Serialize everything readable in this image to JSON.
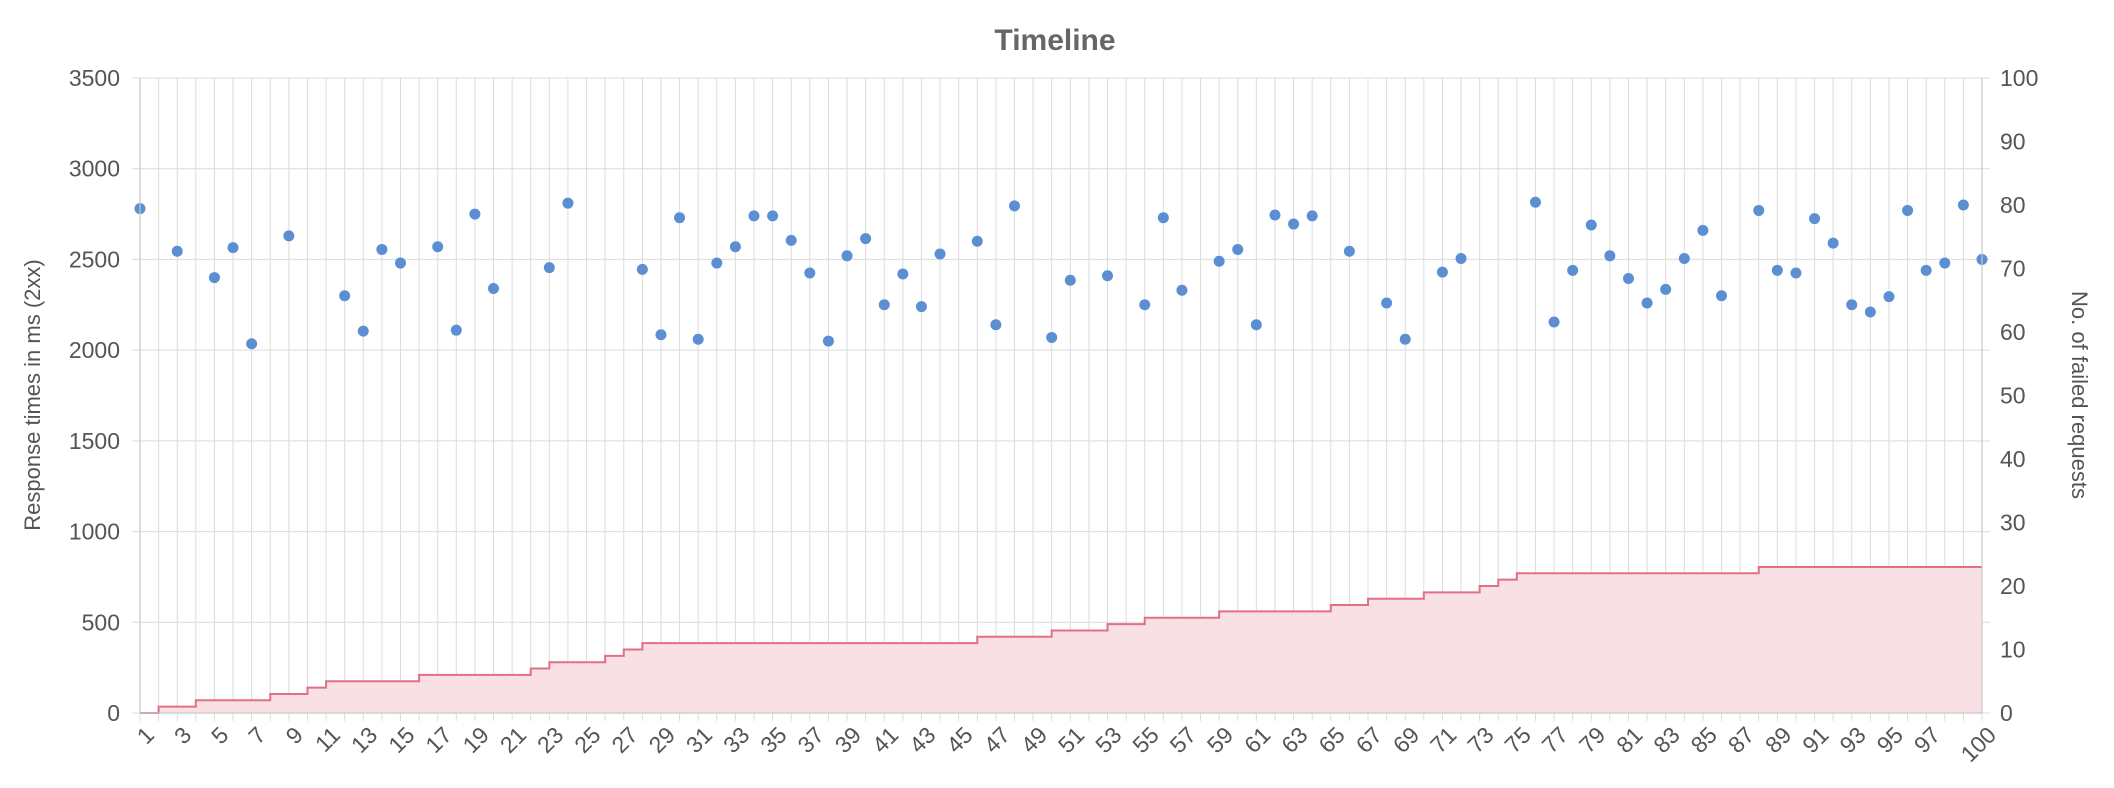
{
  "chart_data": {
    "type": "scatter",
    "title": "Timeline",
    "x": [
      1,
      2,
      3,
      4,
      5,
      6,
      7,
      8,
      9,
      10,
      11,
      12,
      13,
      14,
      15,
      16,
      17,
      18,
      19,
      20,
      21,
      22,
      23,
      24,
      25,
      26,
      27,
      28,
      29,
      30,
      31,
      32,
      33,
      34,
      35,
      36,
      37,
      38,
      39,
      40,
      41,
      42,
      43,
      44,
      45,
      46,
      47,
      48,
      49,
      50,
      51,
      52,
      53,
      54,
      55,
      56,
      57,
      58,
      59,
      60,
      61,
      62,
      63,
      64,
      65,
      66,
      67,
      68,
      69,
      70,
      71,
      72,
      73,
      74,
      75,
      76,
      77,
      78,
      79,
      80,
      81,
      82,
      83,
      84,
      85,
      86,
      87,
      88,
      89,
      90,
      91,
      92,
      93,
      94,
      95,
      96,
      97,
      98,
      99,
      100
    ],
    "x_tick_labels": [
      "1",
      "3",
      "5",
      "7",
      "9",
      "11",
      "13",
      "15",
      "17",
      "19",
      "21",
      "23",
      "25",
      "27",
      "29",
      "31",
      "33",
      "35",
      "37",
      "39",
      "41",
      "43",
      "45",
      "47",
      "49",
      "51",
      "53",
      "55",
      "57",
      "59",
      "61",
      "63",
      "65",
      "67",
      "69",
      "71",
      "73",
      "75",
      "77",
      "79",
      "81",
      "83",
      "85",
      "87",
      "89",
      "91",
      "93",
      "95",
      "97",
      "100"
    ],
    "y_left": {
      "label": "Response times in ms (2xx)",
      "range": [
        0,
        3500
      ],
      "ticks": [
        0,
        500,
        1000,
        1500,
        2000,
        2500,
        3000,
        3500
      ]
    },
    "y_right": {
      "label": "No. of failed requests",
      "range": [
        0,
        100
      ],
      "ticks": [
        0,
        10,
        20,
        30,
        40,
        50,
        60,
        70,
        80,
        90,
        100
      ]
    },
    "series": [
      {
        "type": "scatter",
        "axis": "left",
        "color": "#5b8fd2",
        "points": [
          [
            1,
            2780
          ],
          [
            3,
            2545
          ],
          [
            5,
            2400
          ],
          [
            6,
            2565
          ],
          [
            7,
            2035
          ],
          [
            9,
            2630
          ],
          [
            12,
            2300
          ],
          [
            13,
            2105
          ],
          [
            14,
            2555
          ],
          [
            15,
            2480
          ],
          [
            17,
            2570
          ],
          [
            18,
            2110
          ],
          [
            19,
            2750
          ],
          [
            20,
            2340
          ],
          [
            23,
            2455
          ],
          [
            24,
            2810
          ],
          [
            28,
            2445
          ],
          [
            29,
            2085
          ],
          [
            30,
            2730
          ],
          [
            31,
            2060
          ],
          [
            32,
            2480
          ],
          [
            33,
            2570
          ],
          [
            34,
            2740
          ],
          [
            35,
            2740
          ],
          [
            36,
            2605
          ],
          [
            37,
            2425
          ],
          [
            38,
            2050
          ],
          [
            39,
            2520
          ],
          [
            40,
            2615
          ],
          [
            41,
            2250
          ],
          [
            42,
            2420
          ],
          [
            43,
            2240
          ],
          [
            44,
            2530
          ],
          [
            46,
            2600
          ],
          [
            47,
            2140
          ],
          [
            48,
            2795
          ],
          [
            50,
            2070
          ],
          [
            51,
            2385
          ],
          [
            53,
            2410
          ],
          [
            55,
            2250
          ],
          [
            56,
            2730
          ],
          [
            57,
            2330
          ],
          [
            59,
            2490
          ],
          [
            60,
            2555
          ],
          [
            61,
            2140
          ],
          [
            62,
            2745
          ],
          [
            63,
            2695
          ],
          [
            64,
            2740
          ],
          [
            66,
            2545
          ],
          [
            68,
            2260
          ],
          [
            69,
            2060
          ],
          [
            71,
            2430
          ],
          [
            72,
            2505
          ],
          [
            76,
            2815
          ],
          [
            77,
            2155
          ],
          [
            78,
            2440
          ],
          [
            79,
            2690
          ],
          [
            80,
            2520
          ],
          [
            81,
            2395
          ],
          [
            82,
            2260
          ],
          [
            83,
            2335
          ],
          [
            84,
            2505
          ],
          [
            85,
            2660
          ],
          [
            86,
            2300
          ],
          [
            88,
            2770
          ],
          [
            89,
            2440
          ],
          [
            90,
            2425
          ],
          [
            91,
            2725
          ],
          [
            92,
            2590
          ],
          [
            93,
            2250
          ],
          [
            94,
            2210
          ],
          [
            95,
            2295
          ],
          [
            96,
            2770
          ],
          [
            97,
            2440
          ],
          [
            98,
            2480
          ],
          [
            99,
            2800
          ],
          [
            100,
            2500
          ]
        ]
      },
      {
        "type": "area",
        "step": true,
        "axis": "right",
        "line_color": "#e07084",
        "fill_color": "#f8e0e4",
        "points": [
          [
            1,
            0
          ],
          [
            2,
            1
          ],
          [
            4,
            2
          ],
          [
            8,
            3
          ],
          [
            10,
            4
          ],
          [
            11,
            5
          ],
          [
            16,
            6
          ],
          [
            22,
            7
          ],
          [
            23,
            8
          ],
          [
            26,
            9
          ],
          [
            27,
            10
          ],
          [
            28,
            11
          ],
          [
            46,
            12
          ],
          [
            50,
            13
          ],
          [
            53,
            14
          ],
          [
            55,
            15
          ],
          [
            59,
            16
          ],
          [
            65,
            17
          ],
          [
            67,
            18
          ],
          [
            70,
            19
          ],
          [
            73,
            20
          ],
          [
            74,
            21
          ],
          [
            75,
            22
          ],
          [
            88,
            23
          ],
          [
            100,
            23
          ]
        ]
      }
    ],
    "grid": true,
    "legend": "none"
  }
}
